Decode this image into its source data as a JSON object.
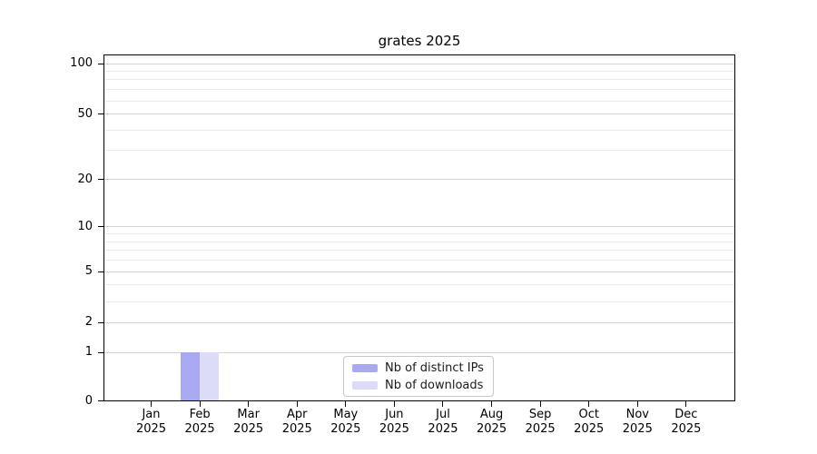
{
  "title": "grates 2025",
  "chart_data": {
    "type": "bar",
    "title": "grates 2025",
    "xlabel": "",
    "ylabel": "",
    "x_ticks": [
      {
        "month": "Jan",
        "year": "2025"
      },
      {
        "month": "Feb",
        "year": "2025"
      },
      {
        "month": "Mar",
        "year": "2025"
      },
      {
        "month": "Apr",
        "year": "2025"
      },
      {
        "month": "May",
        "year": "2025"
      },
      {
        "month": "Jun",
        "year": "2025"
      },
      {
        "month": "Jul",
        "year": "2025"
      },
      {
        "month": "Aug",
        "year": "2025"
      },
      {
        "month": "Sep",
        "year": "2025"
      },
      {
        "month": "Oct",
        "year": "2025"
      },
      {
        "month": "Nov",
        "year": "2025"
      },
      {
        "month": "Dec",
        "year": "2025"
      }
    ],
    "series": [
      {
        "name": "Nb of distinct IPs",
        "color": "#a9a9f3",
        "values": [
          0,
          1,
          0,
          0,
          0,
          0,
          0,
          0,
          0,
          0,
          0,
          0
        ]
      },
      {
        "name": "Nb of downloads",
        "color": "#dcdcf8",
        "values": [
          0,
          1,
          0,
          0,
          0,
          0,
          0,
          0,
          0,
          0,
          0,
          0
        ]
      }
    ],
    "yscale": "log(value+1)",
    "ylim": [
      0,
      113
    ],
    "y_major_ticks": [
      0,
      1,
      2,
      5,
      10,
      20,
      50,
      100
    ],
    "y_minor_ticks": [
      3,
      4,
      6,
      7,
      8,
      9,
      30,
      40,
      60,
      70,
      80,
      90,
      110
    ],
    "grid": "horizontal",
    "legend_position": "lower center"
  },
  "colors": {
    "background": "#ffffff",
    "axis": "#000000",
    "text": "#000000",
    "grid_major": "#d3d3d3",
    "grid_minor": "#ebebeb",
    "legend_border": "#c8c8c8"
  }
}
